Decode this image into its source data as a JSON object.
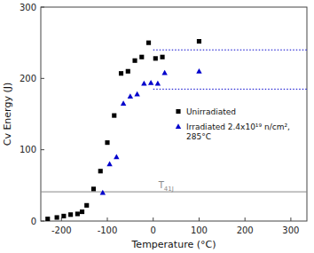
{
  "chart_data": {
    "type": "scatter",
    "xlabel": "Temperature (°C)",
    "ylabel": "Cv Energy (J)",
    "xlim": [
      -245,
      335
    ],
    "ylim": [
      0,
      300
    ],
    "xticks": [
      -200,
      -100,
      0,
      100,
      200,
      300
    ],
    "yticks": [
      0,
      100,
      200,
      300
    ],
    "legend": "right",
    "series": [
      {
        "name": "Unirradiated",
        "color": "#000000",
        "marker": "square",
        "x": [
          -230,
          -210,
          -195,
          -180,
          -165,
          -155,
          -145,
          -130,
          -115,
          -100,
          -85,
          -70,
          -55,
          -40,
          -25,
          -10,
          5,
          20,
          100
        ],
        "values": [
          3,
          5,
          7,
          9,
          10,
          13,
          22,
          45,
          70,
          110,
          148,
          207,
          210,
          225,
          230,
          250,
          228,
          230,
          252
        ]
      },
      {
        "name": "Irradiated 2.4x10¹⁹ n/cm²,\n285°C",
        "color": "#0000cc",
        "marker": "triangle",
        "x": [
          -110,
          -95,
          -80,
          -65,
          -50,
          -35,
          -20,
          -5,
          10,
          25,
          100
        ],
        "values": [
          40,
          80,
          90,
          165,
          175,
          178,
          193,
          194,
          193,
          208,
          210
        ]
      }
    ],
    "reference_lines": [
      {
        "value": 240,
        "x_range": [
          0,
          335
        ],
        "color": "#0000cc",
        "line_style": "dotted"
      },
      {
        "value": 185,
        "x_range": [
          0,
          335
        ],
        "color": "#0000cc",
        "line_style": "dotted"
      },
      {
        "value": 41,
        "label": "T41J",
        "color": "#888888",
        "line_style": "solid"
      }
    ]
  }
}
